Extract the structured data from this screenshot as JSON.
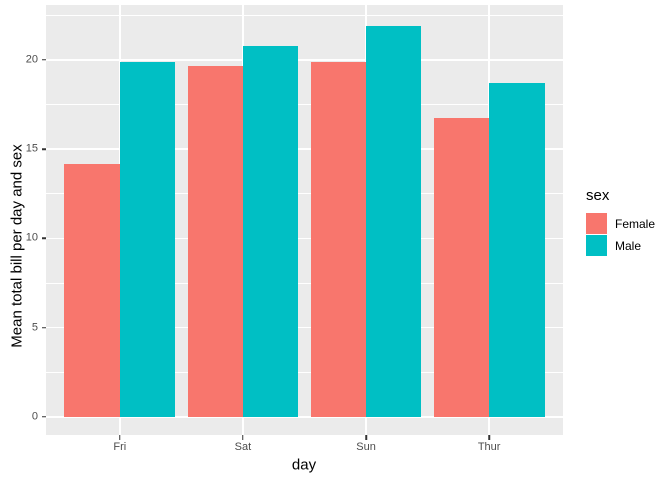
{
  "chart_data": {
    "type": "bar",
    "title": "",
    "categories": [
      "Fri",
      "Sat",
      "Sun",
      "Thur"
    ],
    "series": [
      {
        "name": "Female",
        "color": "#F8766D",
        "values": [
          14.15,
          19.68,
          19.87,
          16.72
        ]
      },
      {
        "name": "Male",
        "color": "#00BFC4",
        "values": [
          19.86,
          20.8,
          21.89,
          18.71
        ]
      }
    ],
    "xlabel": "day",
    "ylabel": "Mean total bill per day and sex",
    "y_ticks": [
      0,
      5,
      10,
      15,
      20
    ],
    "y_minor_ticks": [
      2.5,
      7.5,
      12.5,
      17.5,
      22.5
    ],
    "ylim": [
      -1.01,
      23.07
    ],
    "bar_group_width": 0.9,
    "grid": true,
    "legend": {
      "title": "sex",
      "position": "right",
      "labels": [
        "Female",
        "Male"
      ]
    },
    "colors": {
      "panel_bg": "#EBEBEB",
      "grid": "#FFFFFF",
      "axis_text": "#4D4D4D",
      "axis_title": "#000000",
      "tick_mark": "#333333"
    }
  }
}
